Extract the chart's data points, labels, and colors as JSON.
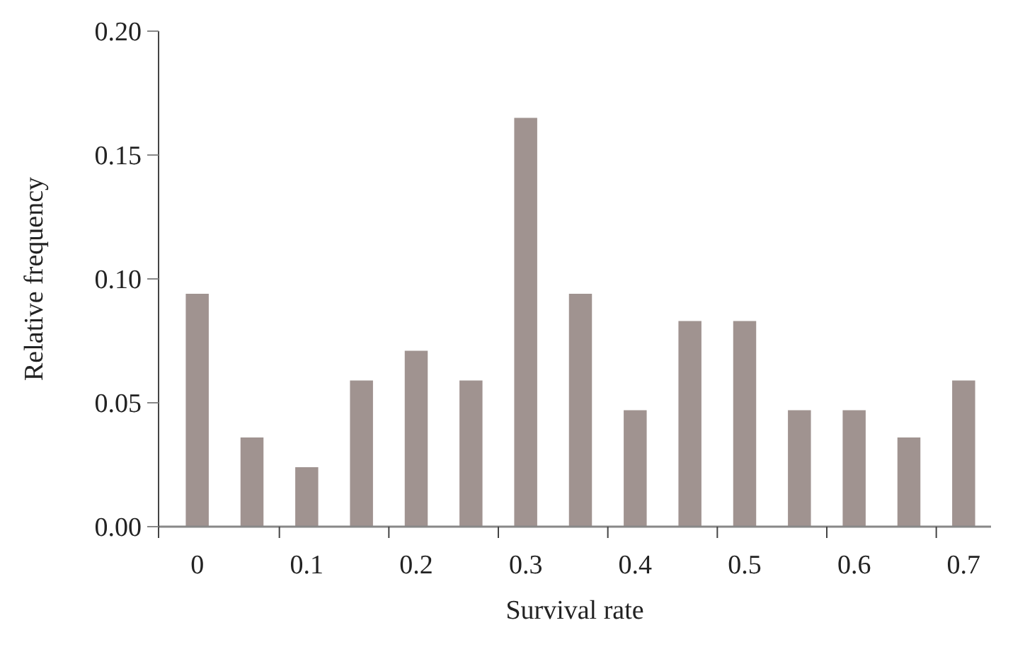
{
  "chart_data": {
    "type": "bar",
    "xlabel": "Survival rate",
    "ylabel": "Relative frequency",
    "categories": [
      "0",
      null,
      "0.1",
      null,
      "0.2",
      null,
      "0.3",
      null,
      "0.4",
      null,
      "0.5",
      null,
      "0.6",
      null,
      "0.7"
    ],
    "values": [
      0.094,
      0.036,
      0.024,
      0.059,
      0.071,
      0.059,
      0.165,
      0.094,
      0.047,
      0.083,
      0.083,
      0.047,
      0.047,
      0.036,
      0.059
    ],
    "color": "#a09390",
    "ylim": [
      0,
      0.2
    ],
    "yticks": [
      {
        "value": 0,
        "label": "0.00"
      },
      {
        "value": 0.05,
        "label": "0.05"
      },
      {
        "value": 0.1,
        "label": "0.10"
      },
      {
        "value": 0.15,
        "label": "0.15"
      },
      {
        "value": 0.2,
        "label": "0.20"
      }
    ]
  }
}
